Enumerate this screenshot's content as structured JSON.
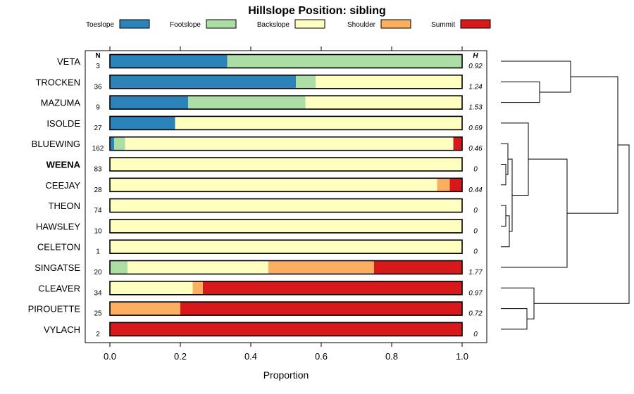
{
  "chart_data": {
    "type": "bar",
    "orientation": "horizontal",
    "stacked": true,
    "title": "Hillslope Position: sibling",
    "xlabel": "Proportion",
    "xlim": [
      0,
      1
    ],
    "xticks": [
      "0.0",
      "0.2",
      "0.4",
      "0.6",
      "0.8",
      "1.0"
    ],
    "n_header": "N",
    "h_header": "H",
    "highlight": "WEENA",
    "legend": [
      {
        "name": "Toeslope",
        "color": "#2b83ba"
      },
      {
        "name": "Footslope",
        "color": "#abdda4"
      },
      {
        "name": "Backslope",
        "color": "#ffffbf"
      },
      {
        "name": "Shoulder",
        "color": "#fdae61"
      },
      {
        "name": "Summit",
        "color": "#d7191c"
      }
    ],
    "rows": [
      {
        "name": "VETA",
        "n": "3",
        "h": "0.92",
        "values": [
          0.333,
          0.667,
          0,
          0,
          0
        ]
      },
      {
        "name": "TROCKEN",
        "n": "36",
        "h": "1.24",
        "values": [
          0.528,
          0.056,
          0.416,
          0,
          0
        ]
      },
      {
        "name": "MAZUMA",
        "n": "9",
        "h": "1.53",
        "values": [
          0.222,
          0.333,
          0.445,
          0,
          0
        ]
      },
      {
        "name": "ISOLDE",
        "n": "27",
        "h": "0.69",
        "values": [
          0.185,
          0,
          0.815,
          0,
          0
        ]
      },
      {
        "name": "BLUEWING",
        "n": "162",
        "h": "0.46",
        "values": [
          0.012,
          0.031,
          0.932,
          0,
          0.025
        ]
      },
      {
        "name": "WEENA",
        "n": "83",
        "h": "0",
        "values": [
          0,
          0,
          1,
          0,
          0
        ]
      },
      {
        "name": "CEEJAY",
        "n": "28",
        "h": "0.44",
        "values": [
          0,
          0,
          0.929,
          0.036,
          0.035
        ]
      },
      {
        "name": "THEON",
        "n": "74",
        "h": "0",
        "values": [
          0,
          0,
          1,
          0,
          0
        ]
      },
      {
        "name": "HAWSLEY",
        "n": "10",
        "h": "0",
        "values": [
          0,
          0,
          1,
          0,
          0
        ]
      },
      {
        "name": "CELETON",
        "n": "1",
        "h": "0",
        "values": [
          0,
          0,
          1,
          0,
          0
        ]
      },
      {
        "name": "SINGATSE",
        "n": "20",
        "h": "1.77",
        "values": [
          0,
          0.05,
          0.4,
          0.3,
          0.25
        ]
      },
      {
        "name": "CLEAVER",
        "n": "34",
        "h": "0.97",
        "values": [
          0,
          0,
          0.235,
          0.029,
          0.736
        ]
      },
      {
        "name": "PIROUETTE",
        "n": "25",
        "h": "0.72",
        "values": [
          0,
          0,
          0,
          0.2,
          0.8
        ]
      },
      {
        "name": "VYLACH",
        "n": "2",
        "h": "0",
        "values": [
          0,
          0,
          0,
          0,
          1
        ]
      }
    ]
  }
}
